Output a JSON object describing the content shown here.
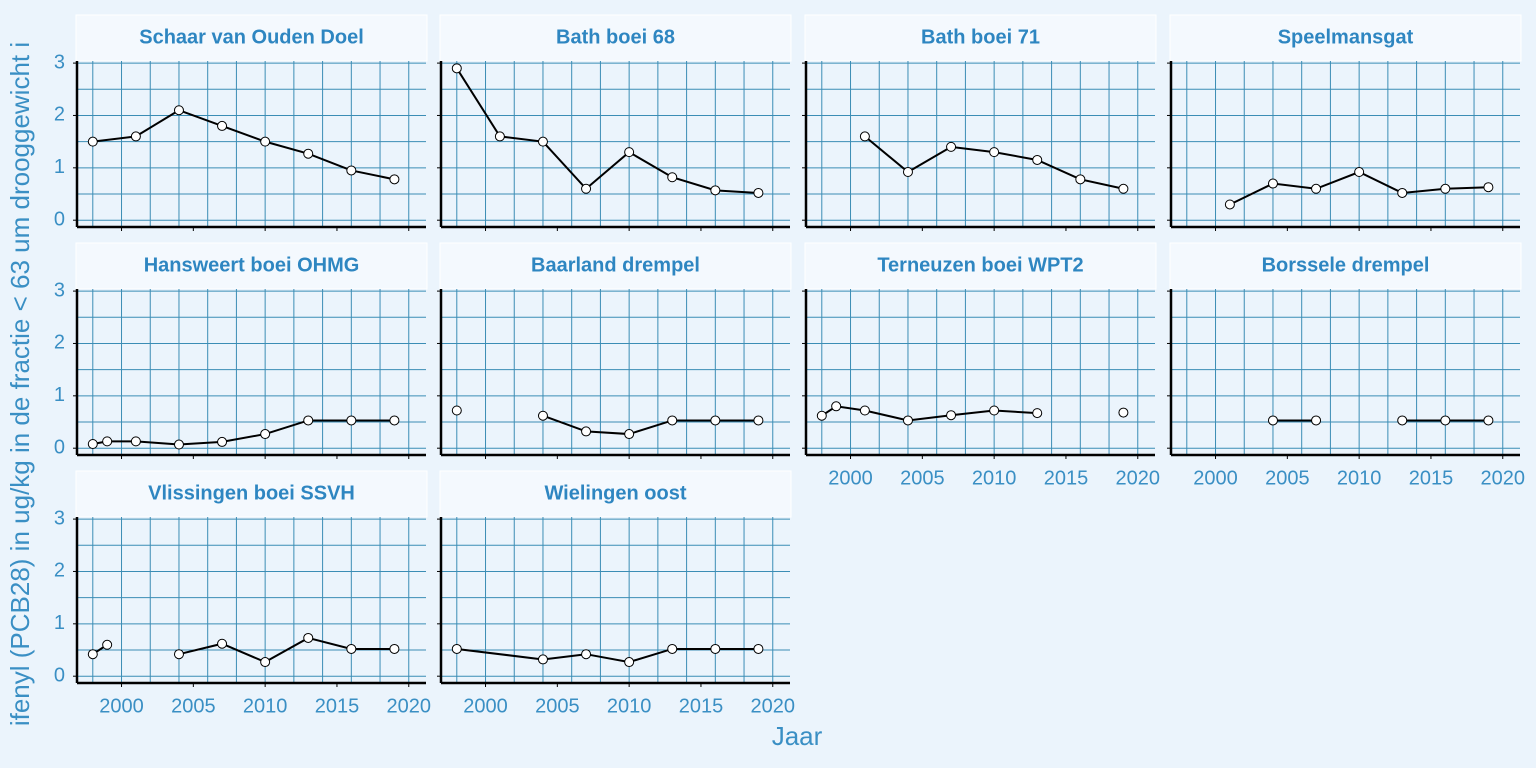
{
  "xlabel": "Jaar",
  "ylabel": "ifenyl (PCB28) in ug/kg in de fractie < 63 um drooggewicht i",
  "x_grid": [
    1998,
    2000,
    2002,
    2004,
    2006,
    2008,
    2010,
    2012,
    2014,
    2016,
    2018,
    2020
  ],
  "y_grid": [
    0,
    0.5,
    1,
    1.5,
    2,
    2.5,
    3
  ],
  "chart_data": [
    {
      "type": "line",
      "title": "Schaar van Ouden Doel",
      "x": [
        1998,
        2001,
        2004,
        2007,
        2010,
        2013,
        2016,
        2019
      ],
      "values": [
        1.5,
        1.6,
        2.1,
        1.8,
        1.5,
        1.27,
        0.95,
        0.78
      ],
      "xlim": [
        1996.9,
        2021.2
      ],
      "ylim": [
        -0.13,
        3.04
      ],
      "xticks": [
        2000,
        2005,
        2010,
        2015,
        2020
      ],
      "yticks": [
        0,
        1,
        2,
        3
      ],
      "color": "#000000"
    },
    {
      "type": "line",
      "title": "Bath boei 68",
      "x": [
        1998,
        2001,
        2004,
        2007,
        2010,
        2013,
        2016,
        2019
      ],
      "values": [
        2.9,
        1.6,
        1.5,
        0.6,
        1.3,
        0.82,
        0.57,
        0.52
      ],
      "xlim": [
        1996.9,
        2021.2
      ],
      "ylim": [
        -0.13,
        3.04
      ],
      "xticks": [
        2000,
        2005,
        2010,
        2015,
        2020
      ],
      "yticks": [
        0,
        1,
        2,
        3
      ],
      "color": "#000000"
    },
    {
      "type": "line",
      "title": "Bath boei 71",
      "x": [
        2001,
        2004,
        2007,
        2010,
        2013,
        2016,
        2019
      ],
      "values": [
        1.6,
        0.92,
        1.4,
        1.3,
        1.15,
        0.78,
        0.6
      ],
      "xlim": [
        1996.9,
        2021.2
      ],
      "ylim": [
        -0.13,
        3.04
      ],
      "xticks": [
        2000,
        2005,
        2010,
        2015,
        2020
      ],
      "yticks": [
        0,
        1,
        2,
        3
      ],
      "color": "#000000"
    },
    {
      "type": "line",
      "title": "Speelmansgat",
      "x": [
        2001,
        2004,
        2007,
        2010,
        2013,
        2016,
        2019
      ],
      "values": [
        0.3,
        0.7,
        0.6,
        0.92,
        0.52,
        0.6,
        0.63
      ],
      "xlim": [
        1996.9,
        2021.2
      ],
      "ylim": [
        -0.13,
        3.04
      ],
      "xticks": [
        2000,
        2005,
        2010,
        2015,
        2020
      ],
      "yticks": [
        0,
        1,
        2,
        3
      ],
      "color": "#000000"
    },
    {
      "type": "line",
      "title": "Hansweert boei OHMG",
      "x": [
        1998,
        1999,
        2001,
        2004,
        2007,
        2010,
        2013,
        2016,
        2019
      ],
      "values": [
        0.08,
        0.13,
        0.13,
        0.07,
        0.12,
        0.27,
        0.53,
        0.53,
        0.53
      ],
      "xlim": [
        1996.9,
        2021.2
      ],
      "ylim": [
        -0.13,
        3.04
      ],
      "xticks": [
        2000,
        2005,
        2010,
        2015,
        2020
      ],
      "yticks": [
        0,
        1,
        2,
        3
      ],
      "color": "#000000"
    },
    {
      "type": "line",
      "title": "Baarland drempel",
      "x": [
        1998,
        2001,
        2004,
        2007,
        2010,
        2013,
        2016,
        2019
      ],
      "values": [
        0.72,
        null,
        0.62,
        0.32,
        0.27,
        0.53,
        0.53,
        0.53
      ],
      "xlim": [
        1996.9,
        2021.2
      ],
      "ylim": [
        -0.13,
        3.04
      ],
      "xticks": [
        2000,
        2005,
        2010,
        2015,
        2020
      ],
      "yticks": [
        0,
        1,
        2,
        3
      ],
      "color": "#000000"
    },
    {
      "type": "line",
      "title": "Terneuzen boei WPT2",
      "x": [
        1998,
        1999,
        2001,
        2004,
        2007,
        2010,
        2013,
        2016,
        2019
      ],
      "values": [
        0.62,
        0.8,
        0.72,
        0.53,
        0.63,
        0.72,
        0.67,
        null,
        0.68
      ],
      "xlim": [
        1996.9,
        2021.2
      ],
      "ylim": [
        -0.13,
        3.04
      ],
      "xticks": [
        2000,
        2005,
        2010,
        2015,
        2020
      ],
      "yticks": [
        0,
        1,
        2,
        3
      ],
      "color": "#000000"
    },
    {
      "type": "line",
      "title": "Borssele drempel",
      "x": [
        2004,
        2007,
        2010,
        2013,
        2016,
        2019
      ],
      "values": [
        0.53,
        0.53,
        null,
        0.53,
        0.53,
        0.53
      ],
      "xlim": [
        1996.9,
        2021.2
      ],
      "ylim": [
        -0.13,
        3.04
      ],
      "xticks": [
        2000,
        2005,
        2010,
        2015,
        2020
      ],
      "yticks": [
        0,
        1,
        2,
        3
      ],
      "color": "#000000"
    },
    {
      "type": "line",
      "title": "Vlissingen boei SSVH",
      "x": [
        1998,
        1999,
        2001,
        2004,
        2007,
        2010,
        2013,
        2016,
        2019
      ],
      "values": [
        0.42,
        0.6,
        null,
        0.42,
        0.62,
        0.27,
        0.73,
        0.52,
        0.52
      ],
      "xlim": [
        1996.9,
        2021.2
      ],
      "ylim": [
        -0.13,
        3.04
      ],
      "xticks": [
        2000,
        2005,
        2010,
        2015,
        2020
      ],
      "yticks": [
        0,
        1,
        2,
        3
      ],
      "color": "#000000"
    },
    {
      "type": "line",
      "title": "Wielingen oost",
      "x": [
        1998,
        2004,
        2007,
        2010,
        2013,
        2016,
        2019
      ],
      "values": [
        0.52,
        0.32,
        0.42,
        0.27,
        0.52,
        0.52,
        0.52
      ],
      "xlim": [
        1996.9,
        2021.2
      ],
      "ylim": [
        -0.13,
        3.04
      ],
      "xticks": [
        2000,
        2005,
        2010,
        2015,
        2020
      ],
      "yticks": [
        0,
        1,
        2,
        3
      ],
      "color": "#000000"
    }
  ]
}
